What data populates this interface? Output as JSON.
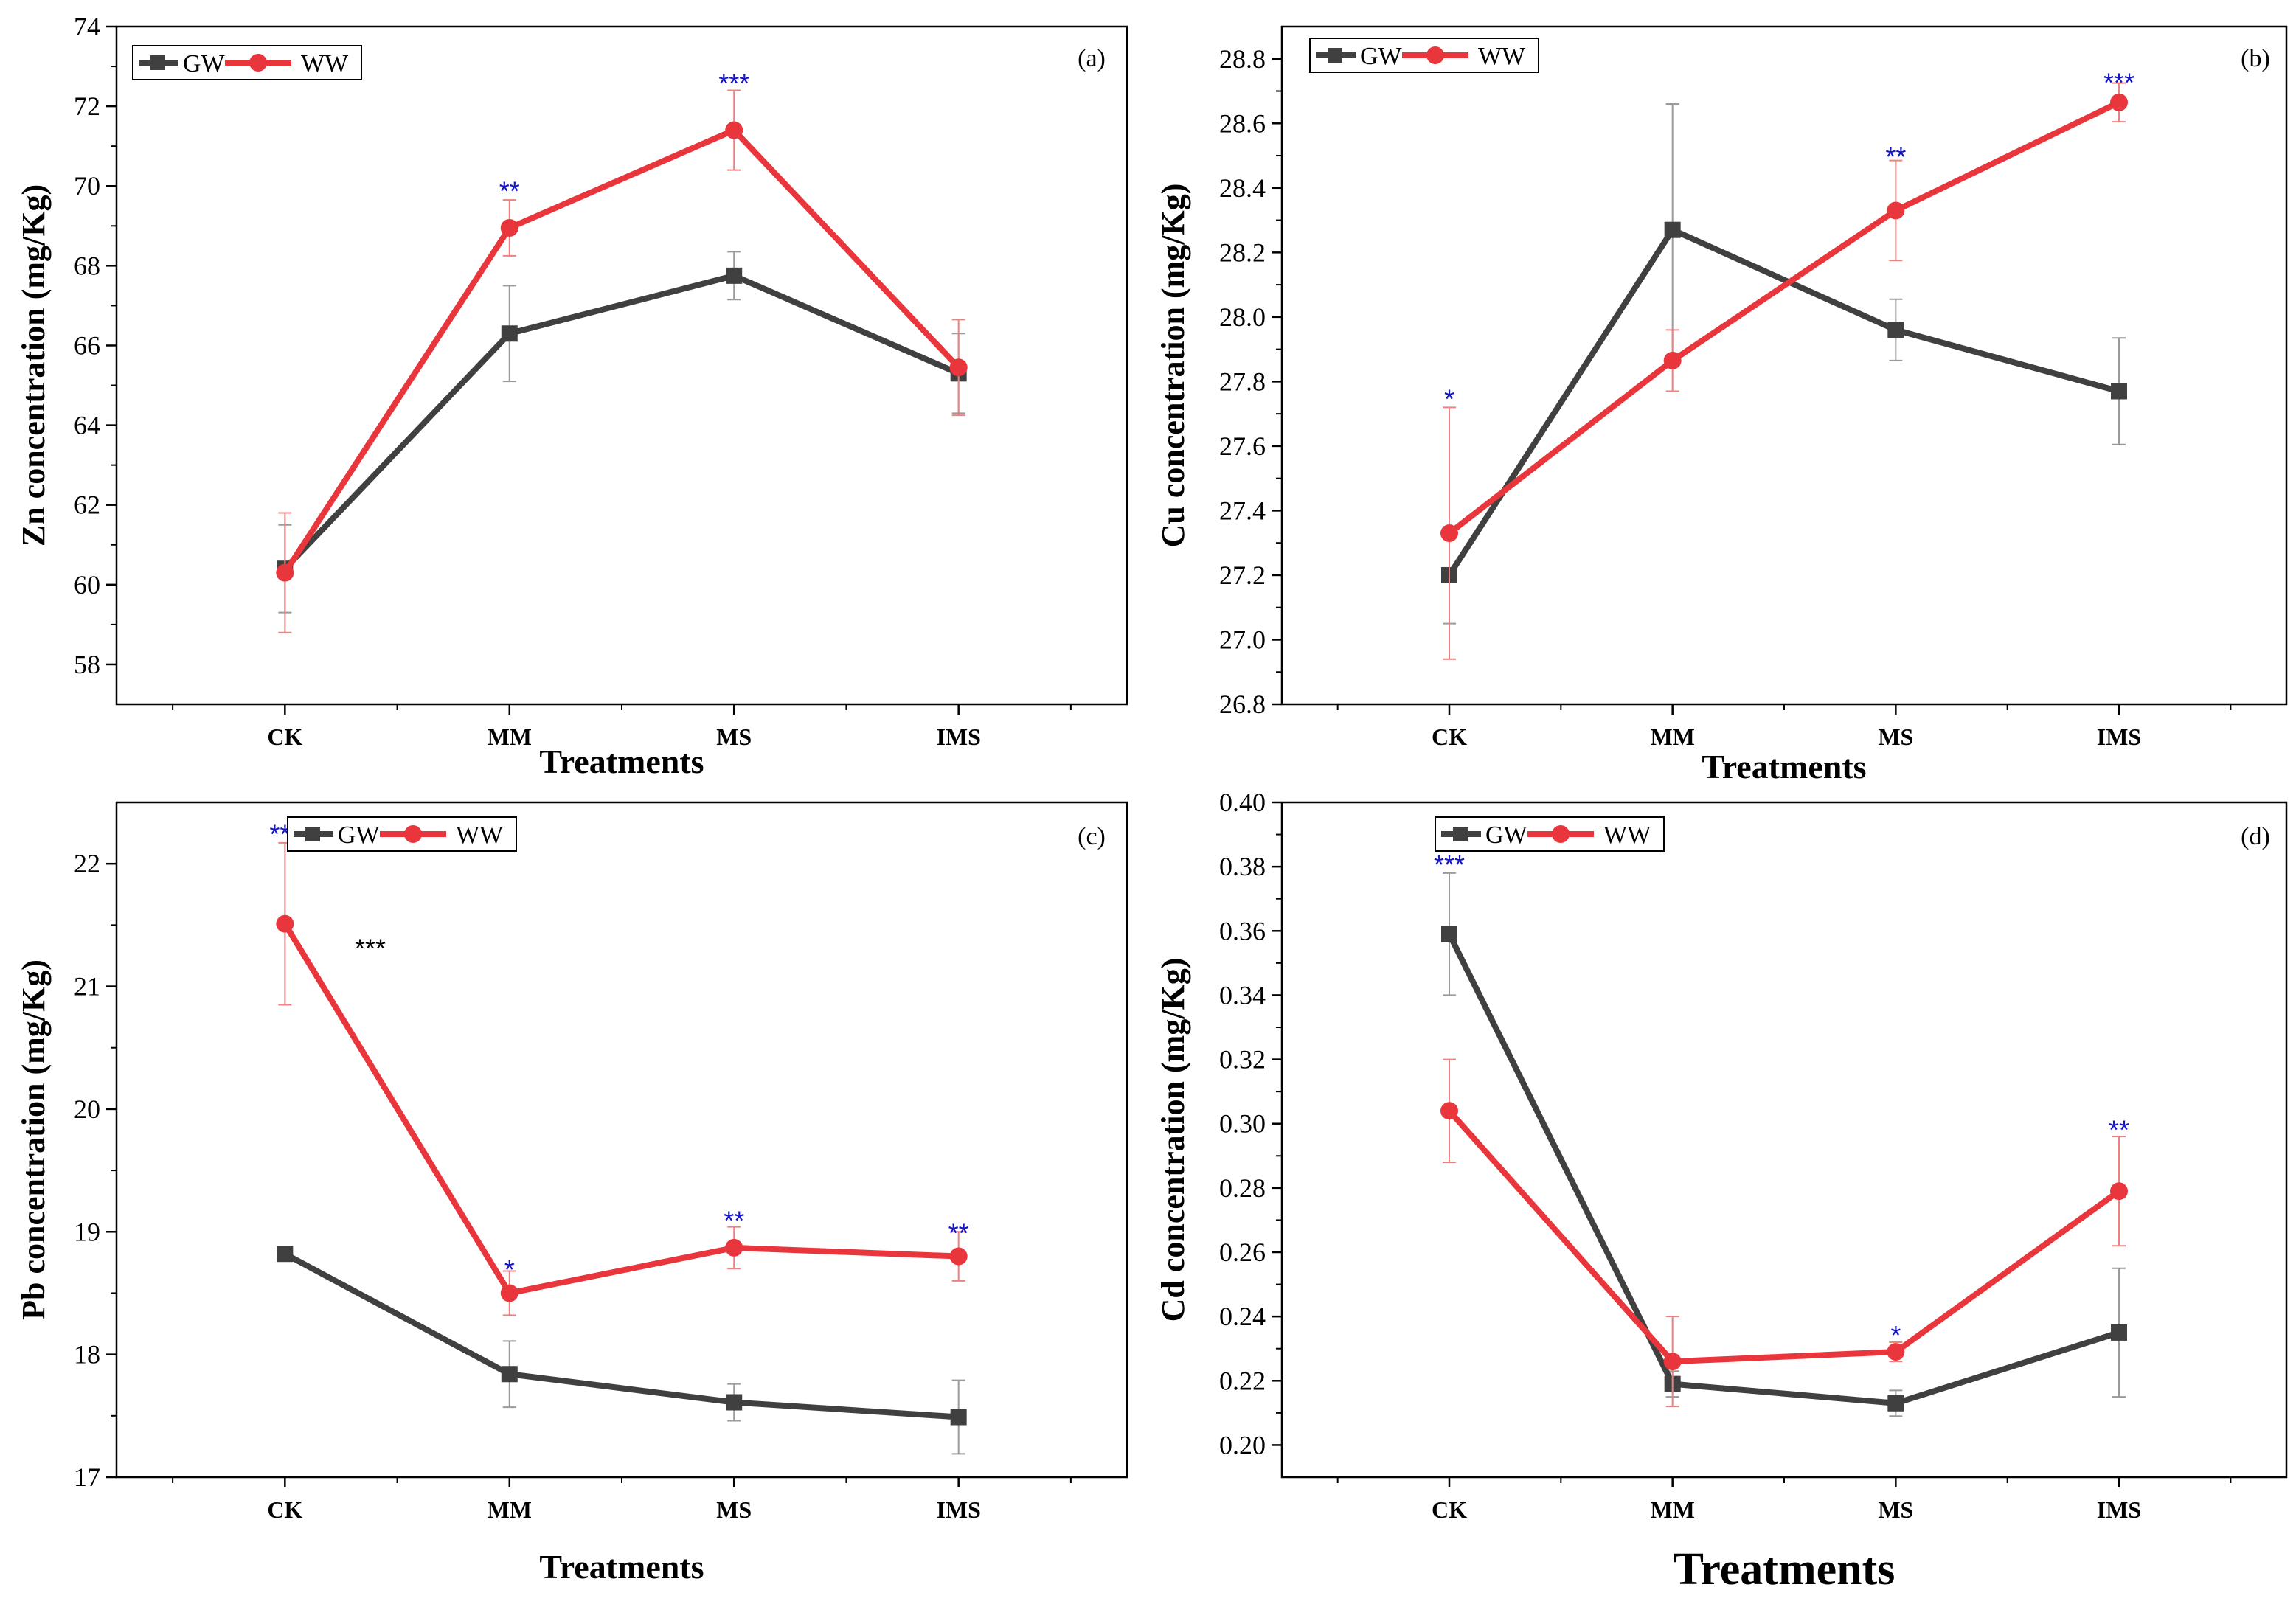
{
  "figure_colors": {
    "gw": "#404040",
    "ww": "#e8363c",
    "ww_error": "#f08080",
    "gw_error": "#9a9a9a",
    "sig_blue": "#1414c8",
    "sig_black": "#000000"
  },
  "chart_data": [
    {
      "type": "line",
      "panel": "(a)",
      "ylabel": "Zn concentration (mg/Kg)",
      "xlabel": "Treatments",
      "categories": [
        "CK",
        "MM",
        "MS",
        "IMS"
      ],
      "ylim": [
        57,
        74
      ],
      "yticks": [
        58,
        60,
        62,
        64,
        66,
        68,
        70,
        72,
        74
      ],
      "ytick_labels": [
        "58",
        "60",
        "62",
        "64",
        "66",
        "68",
        "70",
        "72",
        "74"
      ],
      "legend": [
        "GW",
        "WW"
      ],
      "legend_position": "top-left",
      "series": [
        {
          "name": "GW",
          "values": [
            60.4,
            66.3,
            67.75,
            65.3
          ],
          "err": [
            1.1,
            1.2,
            0.6,
            1.0
          ]
        },
        {
          "name": "WW",
          "values": [
            60.3,
            68.95,
            71.4,
            65.45
          ],
          "err": [
            1.5,
            0.7,
            1.0,
            1.2
          ]
        }
      ],
      "significance": [
        {
          "category": "MM",
          "label": "**",
          "y": 69.9,
          "color": "blue"
        },
        {
          "category": "MS",
          "label": "***",
          "y": 72.6,
          "color": "blue"
        }
      ]
    },
    {
      "type": "line",
      "panel": "(b)",
      "ylabel": "Cu concentration (mg/Kg)",
      "xlabel": "Treatments",
      "categories": [
        "CK",
        "MM",
        "MS",
        "IMS"
      ],
      "ylim": [
        26.8,
        28.9
      ],
      "yticks": [
        26.8,
        27.0,
        27.2,
        27.4,
        27.6,
        27.8,
        28.0,
        28.2,
        28.4,
        28.6,
        28.8
      ],
      "ytick_labels": [
        "26.8",
        "27.0",
        "27.2",
        "27.4",
        "27.6",
        "27.8",
        "28.0",
        "28.2",
        "28.4",
        "28.6",
        "28.8"
      ],
      "legend": [
        "GW",
        "WW"
      ],
      "legend_position": "top-left",
      "series": [
        {
          "name": "GW",
          "values": [
            27.2,
            28.27,
            27.96,
            27.77
          ],
          "err": [
            0.15,
            0.39,
            0.095,
            0.165
          ]
        },
        {
          "name": "WW",
          "values": [
            27.33,
            27.865,
            28.33,
            28.665
          ],
          "err": [
            0.39,
            0.095,
            0.155,
            0.06
          ]
        }
      ],
      "significance": [
        {
          "category": "CK",
          "label": "*",
          "y": 27.75,
          "color": "blue"
        },
        {
          "category": "MS",
          "label": "**",
          "y": 28.5,
          "color": "blue"
        },
        {
          "category": "IMS",
          "label": "***",
          "y": 28.73,
          "color": "blue"
        }
      ]
    },
    {
      "type": "line",
      "panel": "(c)",
      "ylabel": "Pb concentration (mg/Kg)",
      "xlabel": "Treatments",
      "categories": [
        "CK",
        "MM",
        "MS",
        "IMS"
      ],
      "ylim": [
        17,
        22.5
      ],
      "yticks": [
        17,
        18,
        19,
        20,
        21,
        22
      ],
      "ytick_labels": [
        "17",
        "18",
        "19",
        "20",
        "21",
        "22"
      ],
      "legend": [
        "GW",
        "WW"
      ],
      "legend_position": "top-center",
      "series": [
        {
          "name": "GW",
          "values": [
            18.82,
            17.84,
            17.61,
            17.49
          ],
          "err": [
            0,
            0.27,
            0.15,
            0.3
          ]
        },
        {
          "name": "WW",
          "values": [
            21.51,
            18.5,
            18.87,
            18.8
          ],
          "err": [
            0.66,
            0.18,
            0.17,
            0.2
          ]
        }
      ],
      "significance": [
        {
          "category": "CK",
          "label": "***",
          "y": 22.25,
          "color": "blue"
        },
        {
          "category": "MM",
          "label": "*",
          "y": 18.7,
          "color": "blue"
        },
        {
          "category": "MS",
          "label": "**",
          "y": 19.1,
          "color": "blue"
        },
        {
          "category": "IMS",
          "label": "**",
          "y": 19.0,
          "color": "blue"
        },
        {
          "category": "CK",
          "offset": 0.38,
          "label": "***",
          "y": 21.32,
          "color": "black"
        }
      ]
    },
    {
      "type": "line",
      "panel": "(d)",
      "ylabel": "Cd concentration (mg/Kg)",
      "xlabel": "Treatments",
      "categories": [
        "CK",
        "MM",
        "MS",
        "IMS"
      ],
      "ylim": [
        0.19,
        0.4
      ],
      "yticks": [
        0.2,
        0.22,
        0.24,
        0.26,
        0.28,
        0.3,
        0.32,
        0.34,
        0.36,
        0.38,
        0.4
      ],
      "ytick_labels": [
        "0.20",
        "0.22",
        "0.24",
        "0.26",
        "0.28",
        "0.30",
        "0.32",
        "0.34",
        "0.36",
        "0.38",
        "0.40"
      ],
      "legend": [
        "GW",
        "WW"
      ],
      "legend_position": "top-center",
      "series": [
        {
          "name": "GW",
          "values": [
            0.359,
            0.219,
            0.213,
            0.235
          ],
          "err": [
            0.019,
            0.004,
            0.004,
            0.02
          ]
        },
        {
          "name": "WW",
          "values": [
            0.304,
            0.226,
            0.229,
            0.279
          ],
          "err": [
            0.016,
            0.014,
            0.003,
            0.017
          ]
        }
      ],
      "significance": [
        {
          "category": "CK",
          "label": "***",
          "y": 0.381,
          "color": "blue"
        },
        {
          "category": "MS",
          "label": "*",
          "y": 0.2345,
          "color": "blue"
        },
        {
          "category": "IMS",
          "label": "**",
          "y": 0.2985,
          "color": "blue"
        }
      ]
    }
  ]
}
